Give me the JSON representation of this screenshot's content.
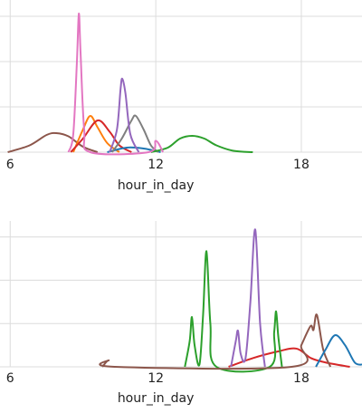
{
  "chart_data": [
    {
      "type": "line",
      "x_label": "hour_in_day",
      "xlim": [
        5.58,
        20.5
      ],
      "xticks": [
        6,
        12,
        18
      ],
      "ylim": [
        0,
        3.2
      ],
      "yticks": [
        0,
        1,
        2,
        3
      ],
      "grid": true,
      "series": [
        {
          "color": "#8c564b",
          "x": [
            5.9,
            6.8,
            7.5,
            7.9,
            8.4,
            9.0,
            9.6
          ],
          "values": [
            0,
            0.15,
            0.38,
            0.42,
            0.35,
            0.12,
            0
          ]
        },
        {
          "color": "#ff7f0e",
          "x": [
            8.6,
            9.0,
            9.3,
            9.6,
            10.0,
            10.5
          ],
          "values": [
            0,
            0.5,
            0.8,
            0.55,
            0.2,
            0
          ]
        },
        {
          "color": "#d62728",
          "x": [
            8.5,
            9.0,
            9.6,
            10.1,
            10.5,
            11.0
          ],
          "values": [
            0,
            0.3,
            0.7,
            0.45,
            0.15,
            0
          ]
        },
        {
          "color": "#1f77b4",
          "x": [
            10.0,
            10.8,
            11.5,
            12.2
          ],
          "values": [
            0,
            0.1,
            0.08,
            0
          ]
        },
        {
          "color": "#7f7f7f",
          "x": [
            10.2,
            10.6,
            11.0,
            11.18,
            11.5,
            11.8,
            12.1
          ],
          "values": [
            0,
            0.3,
            0.7,
            0.8,
            0.5,
            0.15,
            0
          ]
        },
        {
          "color": "#9467bd",
          "x": [
            10.1,
            10.4,
            10.55,
            10.62,
            10.75,
            10.95,
            11.3
          ],
          "values": [
            0,
            0.5,
            1.4,
            1.62,
            1.3,
            0.4,
            0
          ]
        },
        {
          "color": "#2ca02c",
          "x": [
            11.8,
            12.5,
            13.0,
            13.5,
            14.0,
            14.5,
            15.2,
            16.0
          ],
          "values": [
            0,
            0.1,
            0.3,
            0.36,
            0.3,
            0.15,
            0.03,
            0
          ]
        },
        {
          "color": "#e377c2",
          "x": [
            8.4,
            8.6,
            8.75,
            8.83,
            8.9,
            9.05,
            9.3,
            11.7,
            12.0,
            12.3
          ],
          "values": [
            0,
            0.4,
            2.0,
            3.06,
            2.2,
            0.5,
            0,
            0,
            0.25,
            0
          ]
        }
      ]
    },
    {
      "type": "line",
      "x_label": "hour_in_day",
      "xlim": [
        5.58,
        20.5
      ],
      "xticks": [
        6,
        12,
        18
      ],
      "ylim": [
        0,
        3.2
      ],
      "yticks": [
        0,
        1,
        2,
        3
      ],
      "grid": true,
      "series": [
        {
          "color": "#d62728",
          "x": [
            15.0,
            16.0,
            17.0,
            17.8,
            18.4,
            19.0,
            20.0
          ],
          "values": [
            0,
            0.2,
            0.35,
            0.42,
            0.2,
            0.1,
            0
          ]
        },
        {
          "color": "#2ca02c",
          "x": [
            13.2,
            13.4,
            13.49,
            13.6,
            13.8,
            13.95,
            14.09,
            14.25,
            14.5,
            16.7,
            16.88,
            16.96,
            17.05,
            17.2
          ],
          "values": [
            0,
            0.6,
            1.15,
            0.5,
            0.05,
            1.2,
            2.67,
            1.0,
            0,
            0,
            0.8,
            1.28,
            0.7,
            0
          ]
        },
        {
          "color": "#9467bd",
          "x": [
            15.1,
            15.3,
            15.39,
            15.5,
            15.7,
            15.9,
            16.1,
            16.3,
            16.5
          ],
          "values": [
            0,
            0.6,
            0.83,
            0.3,
            0.2,
            1.5,
            3.17,
            1.0,
            0
          ]
        },
        {
          "color": "#8c564b",
          "x": [
            9.8,
            10.06,
            10.3,
            17.6,
            18.0,
            18.38,
            18.5,
            18.64,
            18.9,
            19.2
          ],
          "values": [
            0,
            0.15,
            0,
            0,
            0.5,
            0.94,
            0.85,
            1.2,
            0.4,
            0
          ]
        },
        {
          "color": "#1f77b4",
          "x": [
            18.6,
            19.0,
            19.39,
            19.8,
            20.2,
            20.5
          ],
          "values": [
            0,
            0.4,
            0.73,
            0.5,
            0.1,
            0.05
          ]
        }
      ]
    }
  ]
}
